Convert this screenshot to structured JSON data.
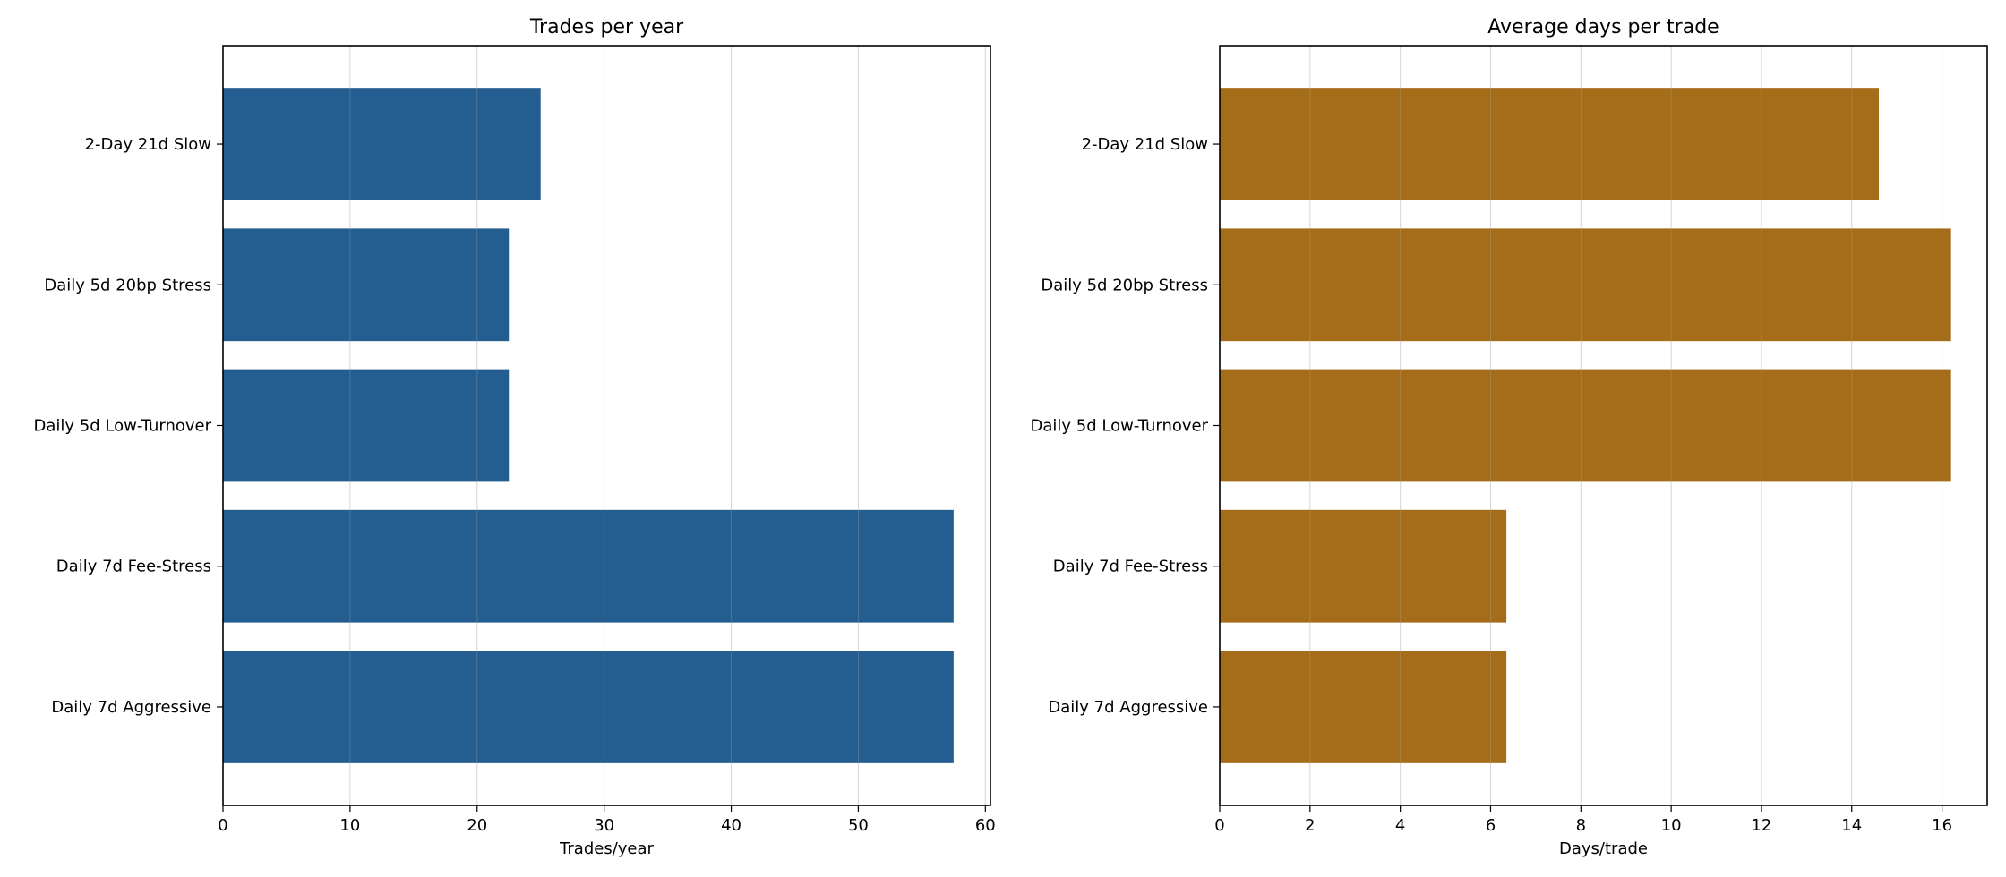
{
  "chart_data": [
    {
      "type": "bar",
      "orientation": "horizontal",
      "title": "Trades per year",
      "xlabel": "Trades/year",
      "ylabel": "",
      "categories": [
        "2-Day 21d Slow",
        "Daily 5d 20bp Stress",
        "Daily 5d Low-Turnover",
        "Daily 7d Fee-Stress",
        "Daily 7d Aggressive"
      ],
      "values": [
        25.0,
        22.5,
        22.5,
        57.5,
        57.5
      ],
      "xlim": [
        0,
        60.4
      ],
      "xticks": [
        0,
        10,
        20,
        30,
        40,
        50,
        60
      ],
      "grid": "x",
      "color": "#245d8f"
    },
    {
      "type": "bar",
      "orientation": "horizontal",
      "title": "Average days per trade",
      "xlabel": "Days/trade",
      "ylabel": "",
      "categories": [
        "2-Day 21d Slow",
        "Daily 5d 20bp Stress",
        "Daily 5d Low-Turnover",
        "Daily 7d Fee-Stress",
        "Daily 7d Aggressive"
      ],
      "values": [
        14.6,
        16.2,
        16.2,
        6.35,
        6.35
      ],
      "xlim": [
        0,
        17.0
      ],
      "xticks": [
        0,
        2,
        4,
        6,
        8,
        10,
        12,
        14,
        16
      ],
      "grid": "x",
      "color": "#a56c19"
    }
  ]
}
